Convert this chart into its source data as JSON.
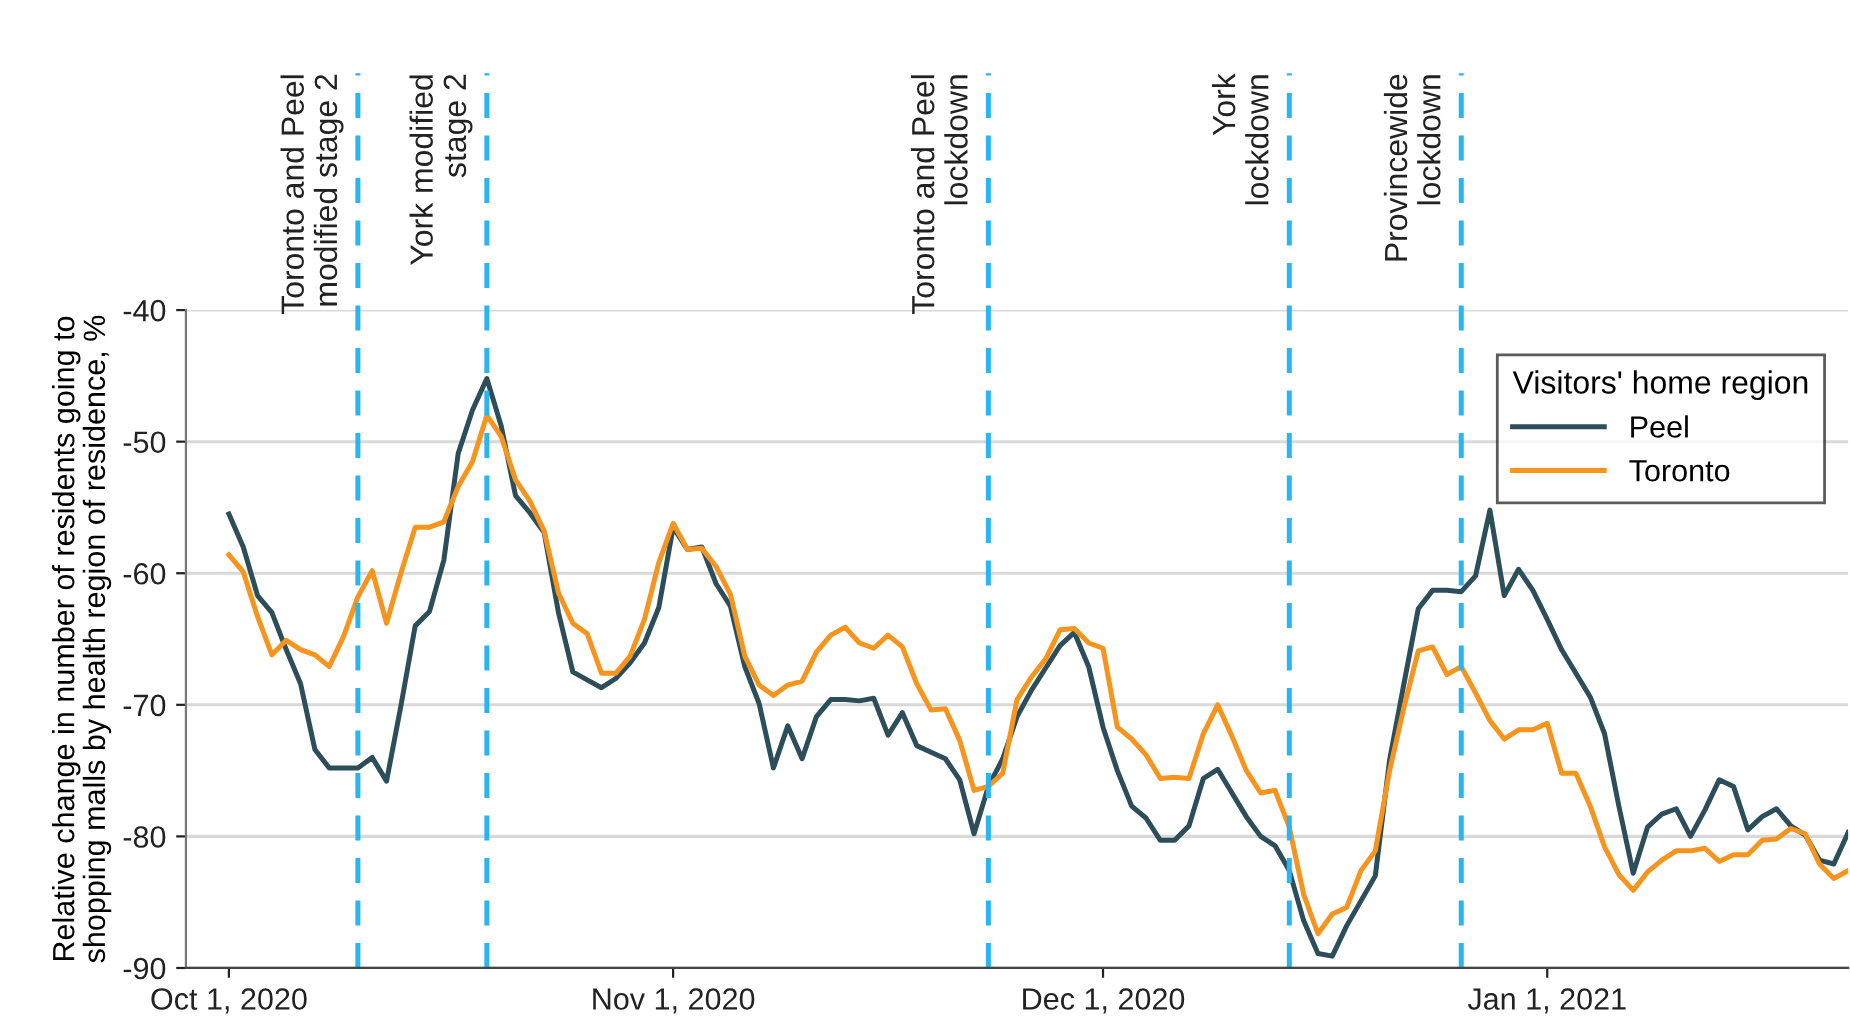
{
  "chart_data": {
    "type": "line",
    "ylabel": "Relative change in number of residents going to\nshopping malls by health region of residence, %",
    "legend_title": "Visitors' home region",
    "legend": "top right",
    "grid": "y",
    "xlim": [
      "2020-09-28",
      "2021-01-22"
    ],
    "xticks": [
      {
        "value": "2020-10-01",
        "label": "Oct 1, 2020"
      },
      {
        "value": "2020-11-01",
        "label": "Nov 1, 2020"
      },
      {
        "value": "2020-12-01",
        "label": "Dec 1, 2020"
      },
      {
        "value": "2021-01-01",
        "label": "Jan 1, 2021"
      }
    ],
    "ylim": [
      -90,
      -40
    ],
    "yticks": [
      -90,
      -80,
      -70,
      -60,
      -50,
      -40
    ],
    "ref_lines": [
      {
        "axis": "x",
        "value": "2020-10-10",
        "label": "Toronto and Peel\nmodified stage 2",
        "color": "#29b6f0",
        "line_style": "dashed"
      },
      {
        "axis": "x",
        "value": "2020-10-19",
        "label": "York modified\nstage 2",
        "color": "#29b6f0",
        "line_style": "dashed"
      },
      {
        "axis": "x",
        "value": "2020-11-23",
        "label": "Toronto and Peel\nlockdown",
        "color": "#29b6f0",
        "line_style": "dashed"
      },
      {
        "axis": "x",
        "value": "2020-12-14",
        "label": "York\nlockdown",
        "color": "#29b6f0",
        "line_style": "dashed"
      },
      {
        "axis": "x",
        "value": "2020-12-26",
        "label": "Provincewide\nlockdown",
        "color": "#29b6f0",
        "line_style": "dashed"
      }
    ],
    "x": [
      "2020-10-01",
      "2020-10-02",
      "2020-10-03",
      "2020-10-04",
      "2020-10-05",
      "2020-10-06",
      "2020-10-07",
      "2020-10-08",
      "2020-10-09",
      "2020-10-10",
      "2020-10-11",
      "2020-10-12",
      "2020-10-13",
      "2020-10-14",
      "2020-10-15",
      "2020-10-16",
      "2020-10-17",
      "2020-10-18",
      "2020-10-19",
      "2020-10-20",
      "2020-10-21",
      "2020-10-22",
      "2020-10-23",
      "2020-10-24",
      "2020-10-25",
      "2020-10-26",
      "2020-10-27",
      "2020-10-28",
      "2020-10-29",
      "2020-10-30",
      "2020-10-31",
      "2020-11-01",
      "2020-11-02",
      "2020-11-03",
      "2020-11-04",
      "2020-11-05",
      "2020-11-06",
      "2020-11-07",
      "2020-11-08",
      "2020-11-09",
      "2020-11-10",
      "2020-11-11",
      "2020-11-12",
      "2020-11-13",
      "2020-11-14",
      "2020-11-15",
      "2020-11-16",
      "2020-11-17",
      "2020-11-18",
      "2020-11-19",
      "2020-11-20",
      "2020-11-21",
      "2020-11-22",
      "2020-11-23",
      "2020-11-24",
      "2020-11-25",
      "2020-11-26",
      "2020-11-27",
      "2020-11-28",
      "2020-11-29",
      "2020-11-30",
      "2020-12-01",
      "2020-12-02",
      "2020-12-03",
      "2020-12-04",
      "2020-12-05",
      "2020-12-06",
      "2020-12-07",
      "2020-12-08",
      "2020-12-09",
      "2020-12-10",
      "2020-12-11",
      "2020-12-12",
      "2020-12-13",
      "2020-12-14",
      "2020-12-15",
      "2020-12-16",
      "2020-12-17",
      "2020-12-18",
      "2020-12-19",
      "2020-12-20",
      "2020-12-21",
      "2020-12-22",
      "2020-12-23",
      "2020-12-24",
      "2020-12-25",
      "2020-12-26",
      "2020-12-27",
      "2020-12-28",
      "2020-12-29",
      "2020-12-30",
      "2020-12-31",
      "2021-01-01",
      "2021-01-02",
      "2021-01-03",
      "2021-01-04",
      "2021-01-05",
      "2021-01-06",
      "2021-01-07",
      "2021-01-08",
      "2021-01-09",
      "2021-01-10",
      "2021-01-11",
      "2021-01-12",
      "2021-01-13",
      "2021-01-14",
      "2021-01-15",
      "2021-01-16",
      "2021-01-17",
      "2021-01-18",
      "2021-01-19",
      "2021-01-20",
      "2021-01-21",
      "2021-01-22"
    ],
    "series": [
      {
        "name": "Peel",
        "color": "#2c4d5a",
        "values": [
          -55.5,
          -58.0,
          -61.7,
          -63.0,
          -65.8,
          -68.4,
          -73.4,
          -74.8,
          -74.8,
          -74.8,
          -74.0,
          -75.8,
          -70.1,
          -64.0,
          -62.9,
          -59.0,
          -50.9,
          -47.6,
          -45.2,
          -48.8,
          -54.1,
          -55.4,
          -56.9,
          -63.0,
          -67.5,
          -68.1,
          -68.7,
          -68.0,
          -66.8,
          -65.3,
          -62.6,
          -56.5,
          -58.2,
          -58.0,
          -60.8,
          -62.5,
          -67.1,
          -69.9,
          -74.8,
          -71.6,
          -74.1,
          -70.9,
          -69.6,
          -69.6,
          -69.7,
          -69.5,
          -72.3,
          -70.6,
          -73.1,
          -73.6,
          -74.1,
          -75.7,
          -79.8,
          -76.2,
          -74.1,
          -70.9,
          -68.9,
          -67.2,
          -65.5,
          -64.5,
          -67.1,
          -71.7,
          -75.0,
          -77.7,
          -78.6,
          -80.3,
          -80.3,
          -79.2,
          -75.6,
          -74.9,
          -76.7,
          -78.5,
          -80.0,
          -80.7,
          -82.6,
          -86.4,
          -88.9,
          -89.1,
          -86.8,
          -84.9,
          -83.0,
          -74.2,
          -68.4,
          -62.7,
          -61.3,
          -61.3,
          -61.4,
          -60.2,
          -55.2,
          -61.7,
          -59.7,
          -61.3,
          -63.5,
          -65.8,
          -67.6,
          -69.4,
          -72.2,
          -77.7,
          -82.8,
          -79.3,
          -78.3,
          -77.9,
          -80.0,
          -78.0,
          -75.7,
          -76.2,
          -79.5,
          -78.5,
          -77.9,
          -79.2,
          -79.9,
          -81.8,
          -82.1,
          -79.7
        ]
      },
      {
        "name": "Toronto",
        "color": "#f7941d",
        "values": [
          -58.6,
          -59.9,
          -63.3,
          -66.2,
          -65.1,
          -65.8,
          -66.2,
          -67.1,
          -64.8,
          -61.8,
          -59.8,
          -63.8,
          -60.0,
          -56.5,
          -56.5,
          -56.1,
          -53.4,
          -51.5,
          -48.0,
          -49.6,
          -52.9,
          -54.5,
          -56.8,
          -61.5,
          -63.8,
          -64.6,
          -67.6,
          -67.6,
          -66.3,
          -63.5,
          -59.2,
          -56.2,
          -58.2,
          -58.1,
          -59.5,
          -61.6,
          -66.3,
          -68.5,
          -69.3,
          -68.5,
          -68.2,
          -66.0,
          -64.7,
          -64.1,
          -65.3,
          -65.7,
          -64.7,
          -65.6,
          -68.4,
          -70.4,
          -70.3,
          -72.7,
          -76.5,
          -76.2,
          -75.2,
          -69.6,
          -67.9,
          -66.5,
          -64.3,
          -64.2,
          -65.3,
          -65.7,
          -71.7,
          -72.6,
          -73.8,
          -75.6,
          -75.5,
          -75.6,
          -72.2,
          -70.0,
          -72.4,
          -75.0,
          -76.7,
          -76.5,
          -79.3,
          -84.4,
          -87.4,
          -85.9,
          -85.4,
          -82.6,
          -81.1,
          -75.0,
          -70.2,
          -65.9,
          -65.6,
          -67.7,
          -67.1,
          -69.1,
          -71.2,
          -72.6,
          -71.9,
          -71.9,
          -71.4,
          -75.2,
          -75.2,
          -77.7,
          -80.8,
          -82.9,
          -84.1,
          -82.7,
          -81.8,
          -81.1,
          -81.1,
          -80.9,
          -81.9,
          -81.4,
          -81.4,
          -80.3,
          -80.2,
          -79.4,
          -79.8,
          -82.1,
          -83.2,
          -82.6
        ]
      }
    ]
  }
}
